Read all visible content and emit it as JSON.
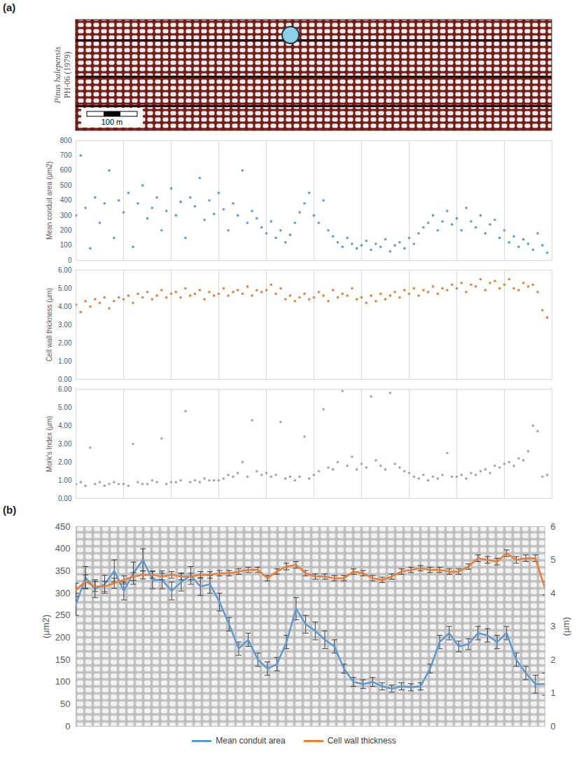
{
  "micrograph": {
    "species": "Pinus halepensis",
    "sample": "PH-06 (1979)",
    "scale_bar": "100 m"
  },
  "chart_data": [
    {
      "type": "scatter",
      "panel": "(a)",
      "y_label": "Mean conduit area (µm2)",
      "color": "#5b9bd5",
      "marker": "circle",
      "grid": "x",
      "tick_labels": "y",
      "xlim": [
        0,
        100
      ],
      "xticks": [
        10,
        20,
        30,
        40,
        50,
        60,
        70,
        80,
        90
      ],
      "ylim": [
        0,
        800
      ],
      "yticks": [
        0,
        100,
        200,
        300,
        400,
        500,
        600,
        700,
        800
      ],
      "x": [
        0,
        1,
        2,
        3,
        4,
        5,
        6,
        7,
        8,
        9,
        10,
        11,
        12,
        13,
        14,
        15,
        16,
        17,
        18,
        19,
        20,
        21,
        22,
        23,
        24,
        25,
        26,
        27,
        28,
        29,
        30,
        31,
        32,
        33,
        34,
        35,
        36,
        37,
        38,
        39,
        40,
        41,
        42,
        43,
        44,
        45,
        46,
        47,
        48,
        49,
        50,
        51,
        52,
        53,
        54,
        55,
        56,
        57,
        58,
        59,
        60,
        61,
        62,
        63,
        64,
        65,
        66,
        67,
        68,
        69,
        70,
        71,
        72,
        73,
        74,
        75,
        76,
        77,
        78,
        79,
        80,
        81,
        82,
        83,
        84,
        85,
        86,
        87,
        88,
        89,
        90,
        91,
        92,
        93,
        94,
        95,
        96,
        97,
        98,
        99
      ],
      "values": [
        300,
        700,
        350,
        80,
        420,
        250,
        380,
        600,
        150,
        400,
        320,
        450,
        90,
        380,
        500,
        280,
        350,
        420,
        200,
        330,
        480,
        300,
        390,
        150,
        420,
        360,
        550,
        270,
        400,
        310,
        450,
        340,
        200,
        380,
        300,
        600,
        250,
        330,
        280,
        220,
        180,
        260,
        150,
        200,
        120,
        170,
        250,
        320,
        380,
        450,
        300,
        250,
        400,
        200,
        160,
        120,
        90,
        150,
        110,
        80,
        100,
        130,
        70,
        110,
        90,
        140,
        60,
        100,
        120,
        80,
        150,
        110,
        180,
        220,
        250,
        300,
        200,
        260,
        330,
        240,
        280,
        200,
        350,
        260,
        220,
        300,
        180,
        240,
        270,
        150,
        200,
        120,
        160,
        90,
        140,
        110,
        70,
        180,
        100,
        50
      ]
    },
    {
      "type": "scatter",
      "y_label": "Cell wall thickness (µm)",
      "color": "#ed7d31",
      "marker": "circle",
      "grid": "x",
      "tick_labels": "y",
      "xlim": [
        0,
        100
      ],
      "xticks": [
        10,
        20,
        30,
        40,
        50,
        60,
        70,
        80,
        90
      ],
      "ylim": [
        0,
        6
      ],
      "yticks": [
        {
          "value": 0,
          "label": "0.00"
        },
        {
          "value": 1,
          "label": "1.00"
        },
        {
          "value": 2,
          "label": "2.00"
        },
        {
          "value": 3,
          "label": "3.00"
        },
        {
          "value": 4,
          "label": "4.00"
        },
        {
          "value": 5,
          "label": "5.00"
        },
        {
          "value": 6,
          "label": "6.00"
        }
      ],
      "x": [
        0,
        1,
        2,
        3,
        4,
        5,
        6,
        7,
        8,
        9,
        10,
        11,
        12,
        13,
        14,
        15,
        16,
        17,
        18,
        19,
        20,
        21,
        22,
        23,
        24,
        25,
        26,
        27,
        28,
        29,
        30,
        31,
        32,
        33,
        34,
        35,
        36,
        37,
        38,
        39,
        40,
        41,
        42,
        43,
        44,
        45,
        46,
        47,
        48,
        49,
        50,
        51,
        52,
        53,
        54,
        55,
        56,
        57,
        58,
        59,
        60,
        61,
        62,
        63,
        64,
        65,
        66,
        67,
        68,
        69,
        70,
        71,
        72,
        73,
        74,
        75,
        76,
        77,
        78,
        79,
        80,
        81,
        82,
        83,
        84,
        85,
        86,
        87,
        88,
        89,
        90,
        91,
        92,
        93,
        94,
        95,
        96,
        97,
        98,
        99
      ],
      "values": [
        4.1,
        3.7,
        4.3,
        4.0,
        4.4,
        4.2,
        4.5,
        3.9,
        4.3,
        4.5,
        4.4,
        4.6,
        4.2,
        4.7,
        4.5,
        4.8,
        4.4,
        4.6,
        4.9,
        4.5,
        4.7,
        4.8,
        4.5,
        5.0,
        4.6,
        4.7,
        4.9,
        4.4,
        4.8,
        4.6,
        4.7,
        5.0,
        4.6,
        4.8,
        4.9,
        4.7,
        5.1,
        4.6,
        4.9,
        4.8,
        4.9,
        5.2,
        4.7,
        5.0,
        4.4,
        4.6,
        4.3,
        4.5,
        4.7,
        4.4,
        4.5,
        4.8,
        4.6,
        4.3,
        4.9,
        4.5,
        4.7,
        4.6,
        5.0,
        4.4,
        4.5,
        4.2,
        4.6,
        4.3,
        4.7,
        4.4,
        4.6,
        4.8,
        4.5,
        4.9,
        4.7,
        5.0,
        4.6,
        4.9,
        4.8,
        5.1,
        4.7,
        5.0,
        4.9,
        5.2,
        5.0,
        5.3,
        4.8,
        5.2,
        5.1,
        5.5,
        4.9,
        5.3,
        5.4,
        5.0,
        5.2,
        5.5,
        5.0,
        4.9,
        5.3,
        5.1,
        5.2,
        4.8,
        3.8,
        3.4
      ]
    },
    {
      "type": "scatter",
      "y_label": "Mork's Index (µm)",
      "color": "#a5a5a5",
      "marker": "circle",
      "grid": "x",
      "tick_labels": "y",
      "xlim": [
        0,
        100
      ],
      "xticks": [
        10,
        20,
        30,
        40,
        50,
        60,
        70,
        80,
        90
      ],
      "ylim": [
        0,
        6
      ],
      "yticks": [
        {
          "value": 0,
          "label": "0.00"
        },
        {
          "value": 1,
          "label": "1.00"
        },
        {
          "value": 2,
          "label": "2.00"
        },
        {
          "value": 3,
          "label": "3.00"
        },
        {
          "value": 4,
          "label": "4.00"
        },
        {
          "value": 5,
          "label": "5.00"
        },
        {
          "value": 6,
          "label": "6.00"
        }
      ],
      "x": [
        0,
        1,
        2,
        3,
        4,
        5,
        6,
        7,
        8,
        9,
        10,
        11,
        12,
        13,
        14,
        15,
        16,
        17,
        18,
        19,
        20,
        21,
        22,
        23,
        24,
        25,
        26,
        27,
        28,
        29,
        30,
        31,
        32,
        33,
        34,
        35,
        36,
        37,
        38,
        39,
        40,
        41,
        42,
        43,
        44,
        45,
        46,
        47,
        48,
        49,
        50,
        51,
        52,
        53,
        54,
        55,
        56,
        57,
        58,
        59,
        60,
        61,
        62,
        63,
        64,
        65,
        66,
        67,
        68,
        69,
        70,
        71,
        72,
        73,
        74,
        75,
        76,
        77,
        78,
        79,
        80,
        81,
        82,
        83,
        84,
        85,
        86,
        87,
        88,
        89,
        90,
        91,
        92,
        93,
        94,
        95,
        96,
        97,
        98,
        99
      ],
      "values": [
        0.8,
        0.9,
        0.7,
        2.8,
        0.8,
        0.9,
        0.7,
        0.8,
        0.9,
        0.8,
        0.8,
        0.7,
        3.0,
        0.9,
        0.8,
        0.8,
        1.0,
        0.9,
        3.3,
        0.8,
        0.9,
        0.9,
        1.0,
        4.8,
        0.9,
        1.0,
        0.9,
        1.1,
        1.0,
        1.0,
        1.0,
        1.1,
        1.3,
        1.2,
        1.4,
        2.0,
        1.2,
        4.3,
        1.5,
        1.3,
        1.4,
        1.2,
        1.3,
        4.2,
        1.1,
        1.2,
        1.0,
        1.2,
        3.4,
        1.1,
        1.3,
        1.5,
        4.9,
        1.7,
        1.6,
        2.0,
        5.9,
        1.8,
        2.3,
        1.6,
        1.9,
        1.7,
        5.6,
        2.1,
        1.8,
        1.6,
        5.8,
        1.9,
        1.7,
        1.5,
        1.4,
        1.2,
        1.1,
        1.3,
        1.0,
        1.2,
        1.1,
        1.3,
        2.5,
        1.2,
        1.2,
        1.3,
        1.1,
        1.4,
        1.3,
        1.5,
        1.6,
        1.4,
        1.8,
        1.7,
        1.9,
        2.0,
        1.8,
        2.2,
        2.1,
        2.6,
        4.0,
        3.7,
        1.2,
        1.3
      ]
    },
    {
      "type": "line",
      "panel": "(b)",
      "y_label": "(µm2)",
      "y2_label": "(µm)",
      "legend": "bottom",
      "tick_labels": "y",
      "xlim": [
        1,
        50
      ],
      "ylim": [
        0,
        450
      ],
      "yticks": [
        0,
        50,
        100,
        150,
        200,
        250,
        300,
        350,
        400,
        450
      ],
      "y2lim": [
        0,
        6
      ],
      "y2ticks": [
        0,
        1,
        2,
        3,
        4,
        5,
        6
      ],
      "x": [
        1,
        2,
        3,
        4,
        5,
        6,
        7,
        8,
        9,
        10,
        11,
        12,
        13,
        14,
        15,
        16,
        17,
        18,
        19,
        20,
        21,
        22,
        23,
        24,
        25,
        26,
        27,
        28,
        29,
        30,
        31,
        32,
        33,
        34,
        35,
        36,
        37,
        38,
        39,
        40,
        41,
        42,
        43,
        44,
        45,
        46,
        47,
        48,
        49,
        50
      ],
      "series": [
        {
          "name": "Mean conduit area",
          "color": "#5b9bd5",
          "line_style": "solid",
          "values": [
            275,
            335,
            310,
            320,
            350,
            305,
            345,
            375,
            330,
            330,
            305,
            325,
            340,
            315,
            320,
            280,
            230,
            175,
            195,
            150,
            130,
            140,
            190,
            265,
            230,
            215,
            195,
            180,
            130,
            100,
            95,
            100,
            90,
            85,
            90,
            88,
            90,
            130,
            190,
            210,
            180,
            185,
            210,
            205,
            190,
            210,
            150,
            120,
            95,
            95
          ],
          "errors": [
            25,
            25,
            20,
            20,
            25,
            20,
            25,
            25,
            20,
            20,
            20,
            20,
            20,
            20,
            20,
            20,
            15,
            15,
            15,
            15,
            15,
            15,
            15,
            25,
            20,
            20,
            20,
            15,
            10,
            10,
            10,
            10,
            8,
            8,
            8,
            8,
            8,
            10,
            15,
            15,
            12,
            12,
            15,
            15,
            15,
            15,
            15,
            15,
            20,
            25
          ]
        },
        {
          "name": "Cell wall thickness",
          "color": "#ed7d31",
          "axis": "y2",
          "line_style": "solid",
          "values": [
            4.1,
            4.35,
            4.2,
            4.2,
            4.3,
            4.4,
            4.5,
            4.55,
            4.55,
            4.5,
            4.55,
            4.5,
            4.5,
            4.55,
            4.55,
            4.6,
            4.6,
            4.65,
            4.7,
            4.7,
            4.45,
            4.65,
            4.8,
            4.85,
            4.6,
            4.5,
            4.5,
            4.45,
            4.45,
            4.65,
            4.6,
            4.45,
            4.4,
            4.5,
            4.65,
            4.7,
            4.75,
            4.7,
            4.7,
            4.65,
            4.65,
            4.8,
            5.05,
            5.0,
            4.95,
            5.2,
            5.0,
            5.05,
            5.05,
            4.15
          ],
          "errors": [
            0.2,
            0.2,
            0.15,
            0.15,
            0.15,
            0.12,
            0.12,
            0.12,
            0.1,
            0.1,
            0.1,
            0.1,
            0.1,
            0.1,
            0.1,
            0.08,
            0.08,
            0.08,
            0.08,
            0.08,
            0.08,
            0.08,
            0.1,
            0.1,
            0.08,
            0.08,
            0.08,
            0.08,
            0.08,
            0.08,
            0.08,
            0.08,
            0.08,
            0.08,
            0.08,
            0.08,
            0.08,
            0.08,
            0.08,
            0.08,
            0.08,
            0.08,
            0.1,
            0.1,
            0.1,
            0.1,
            0.1,
            0.1,
            0.1,
            0.2
          ]
        }
      ]
    }
  ]
}
